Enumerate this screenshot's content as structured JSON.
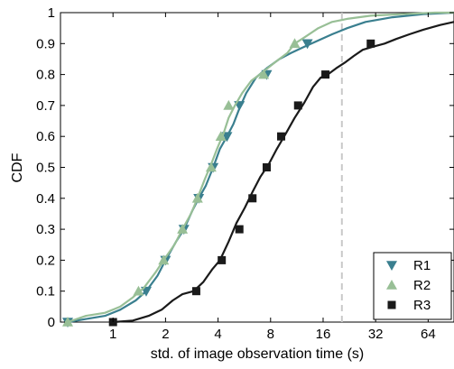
{
  "chart_data": {
    "type": "line",
    "xlabel": "std. of image observation time (s)",
    "ylabel": "CDF",
    "xscale": "log2",
    "xlim": [
      0.5,
      90
    ],
    "ylim": [
      0,
      1
    ],
    "xticks": [
      1,
      2,
      4,
      8,
      16,
      32,
      64
    ],
    "xtick_labels": [
      "1",
      "2",
      "4",
      "8",
      "16",
      "32",
      "64"
    ],
    "yticks": [
      0,
      0.1,
      0.2,
      0.3,
      0.4,
      0.5,
      0.6,
      0.7,
      0.8,
      0.9,
      1
    ],
    "ytick_labels": [
      "0",
      "0.1",
      "0.2",
      "0.3",
      "0.4",
      "0.5",
      "0.6",
      "0.7",
      "0.8",
      "0.9",
      "1"
    ],
    "grid": false,
    "legend_position": "bottom-right",
    "reference_line": {
      "x": 20.5,
      "style": "dashed",
      "color": "#c8c8c8"
    },
    "series": [
      {
        "name": "R1",
        "color": "#3a7f8f",
        "marker": "triangle-down",
        "x": [
          0.55,
          0.7,
          0.9,
          1.1,
          1.35,
          1.55,
          1.8,
          2.0,
          2.3,
          2.55,
          2.85,
          3.1,
          3.4,
          3.75,
          4.1,
          4.5,
          4.9,
          5.3,
          5.8,
          6.6,
          7.6,
          9.0,
          10.5,
          12.5,
          15.0,
          18.0,
          22.0,
          28.0,
          40.0,
          60.0,
          90.0
        ],
        "y": [
          0.0,
          0.01,
          0.02,
          0.04,
          0.07,
          0.1,
          0.15,
          0.2,
          0.26,
          0.3,
          0.36,
          0.4,
          0.44,
          0.5,
          0.56,
          0.6,
          0.64,
          0.69,
          0.74,
          0.79,
          0.82,
          0.85,
          0.87,
          0.89,
          0.91,
          0.93,
          0.95,
          0.97,
          0.985,
          0.995,
          1.0
        ],
        "markers_x": [
          0.55,
          1.55,
          2.0,
          2.55,
          3.1,
          3.75,
          4.5,
          5.3,
          7.6,
          13.0
        ],
        "markers_y": [
          0.0,
          0.1,
          0.2,
          0.3,
          0.4,
          0.5,
          0.6,
          0.7,
          0.8,
          0.9
        ]
      },
      {
        "name": "R2",
        "color": "#98bf96",
        "marker": "triangle-up",
        "x": [
          0.55,
          0.7,
          0.9,
          1.1,
          1.3,
          1.5,
          1.75,
          1.95,
          2.25,
          2.5,
          2.8,
          3.05,
          3.35,
          3.65,
          3.95,
          4.3,
          4.6,
          5.0,
          5.5,
          6.2,
          7.3,
          8.5,
          10.0,
          11.0,
          12.5,
          15.0,
          18.0,
          22.0,
          30.0,
          45.0,
          70.0,
          90.0
        ],
        "y": [
          0.0,
          0.02,
          0.03,
          0.05,
          0.08,
          0.11,
          0.16,
          0.2,
          0.25,
          0.3,
          0.35,
          0.4,
          0.46,
          0.51,
          0.56,
          0.61,
          0.66,
          0.7,
          0.74,
          0.78,
          0.81,
          0.84,
          0.87,
          0.9,
          0.92,
          0.95,
          0.97,
          0.98,
          0.99,
          0.995,
          1.0,
          1.0
        ],
        "markers_x": [
          0.55,
          1.4,
          1.95,
          2.5,
          3.05,
          3.65,
          4.15,
          4.6,
          7.3,
          11.0
        ],
        "markers_y": [
          0.0,
          0.1,
          0.2,
          0.3,
          0.4,
          0.5,
          0.6,
          0.7,
          0.8,
          0.9
        ]
      },
      {
        "name": "R3",
        "color": "#1a1a1a",
        "marker": "square",
        "x": [
          1.0,
          1.3,
          1.6,
          1.9,
          2.2,
          2.5,
          2.9,
          3.3,
          3.7,
          4.1,
          4.6,
          5.1,
          5.7,
          6.3,
          7.0,
          7.8,
          8.7,
          9.8,
          11.0,
          12.5,
          14.0,
          15.5,
          17.0,
          19.0,
          21.5,
          24.0,
          27.0,
          31.0,
          36.0,
          42.0,
          50.0,
          60.0,
          75.0,
          90.0
        ],
        "y": [
          0.0,
          0.005,
          0.02,
          0.04,
          0.07,
          0.09,
          0.1,
          0.13,
          0.17,
          0.2,
          0.26,
          0.32,
          0.37,
          0.42,
          0.47,
          0.51,
          0.56,
          0.61,
          0.66,
          0.71,
          0.76,
          0.79,
          0.8,
          0.82,
          0.84,
          0.86,
          0.88,
          0.89,
          0.9,
          0.915,
          0.93,
          0.945,
          0.96,
          0.97
        ],
        "markers_x": [
          1.0,
          3.0,
          4.2,
          5.3,
          6.3,
          7.6,
          9.2,
          11.5,
          16.5,
          30.0
        ],
        "markers_y": [
          0.0,
          0.1,
          0.2,
          0.3,
          0.4,
          0.5,
          0.6,
          0.7,
          0.8,
          0.9
        ]
      }
    ]
  }
}
